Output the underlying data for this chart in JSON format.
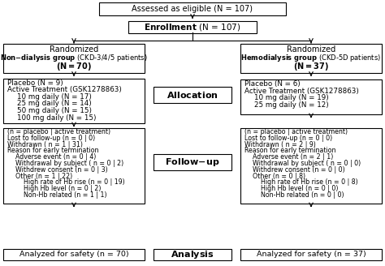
{
  "eligible_text": "Assessed as eligible (N = 107)",
  "enrollment_text": "Enrollment (N = 107)",
  "non_dialysis_lines": [
    "Randomized",
    "Non-dialysis group (CKD-3/4/5 patients)",
    "(N = 70)"
  ],
  "non_dialysis_bold": [
    false,
    true,
    true
  ],
  "hemo_lines": [
    "Randomized",
    "Hemodialysis group (CKD-5D patients)",
    "(N = 37)"
  ],
  "hemo_bold": [
    false,
    true,
    true
  ],
  "allocation_text": "Allocation",
  "followup_text": "Follow-up",
  "analysis_text": "Analysis",
  "left_alloc_lines": [
    [
      "Placebo (N = 9)",
      0
    ],
    [
      "Active Treatment (GSK1278863)",
      0
    ],
    [
      "10 mg daily (N = 17)",
      1
    ],
    [
      "25 mg daily (N = 14)",
      1
    ],
    [
      "50 mg daily (N = 15)",
      1
    ],
    [
      "100 mg daily (N = 15)",
      1
    ]
  ],
  "right_alloc_lines": [
    [
      "Placebo (N = 6)",
      0
    ],
    [
      "Active Treatment (GSK1278863)",
      0
    ],
    [
      "10 mg daily (N = 19)",
      1
    ],
    [
      "25 mg daily (N = 12)",
      1
    ]
  ],
  "left_fu_lines": [
    [
      "(n = placebo | active treatment)",
      0
    ],
    [
      "Lost to follow-up (n = 0 | 0)",
      0
    ],
    [
      "Withdrawn ( n = 1 | 31)",
      0
    ],
    [
      "Reason for early termination",
      0
    ],
    [
      "Adverse event (n = 0 | 4)",
      1
    ],
    [
      "Withdrawal by subject ( n = 0 | 2)",
      1
    ],
    [
      "Withdrew consent (n = 0 | 3)",
      1
    ],
    [
      "Other (n = 1 | 22)",
      1
    ],
    [
      "High rate of Hb rise (n = 0 | 19)",
      2
    ],
    [
      "High Hb level (n = 0 | 2)",
      2
    ],
    [
      "Non-Hb related (n = 1 | 1)",
      2
    ]
  ],
  "right_fu_lines": [
    [
      "(n = placebo | active treatment)",
      0
    ],
    [
      "Lost to follow-up (n = 0 | 0)",
      0
    ],
    [
      "Withdrawn ( n = 2 | 9)",
      0
    ],
    [
      "Reason for early termination",
      0
    ],
    [
      "Adverse event (n = 2 | 1)",
      1
    ],
    [
      "Withdrawal by subject ( n = 0 | 0)",
      1
    ],
    [
      "Withdrew consent (n = 0 | 0)",
      1
    ],
    [
      "Other (n = 0 | 8)",
      1
    ],
    [
      "High rate of Hb rise (n = 0 | 8)",
      2
    ],
    [
      "High Hb level (n = 0 | 0)",
      2
    ],
    [
      "Non-Hb related (n = 0 | 0)",
      2
    ]
  ],
  "left_analysis_text": "Analyzed for safety (n = 70)",
  "right_analysis_text": "Analyzed for safety (n = 37)"
}
